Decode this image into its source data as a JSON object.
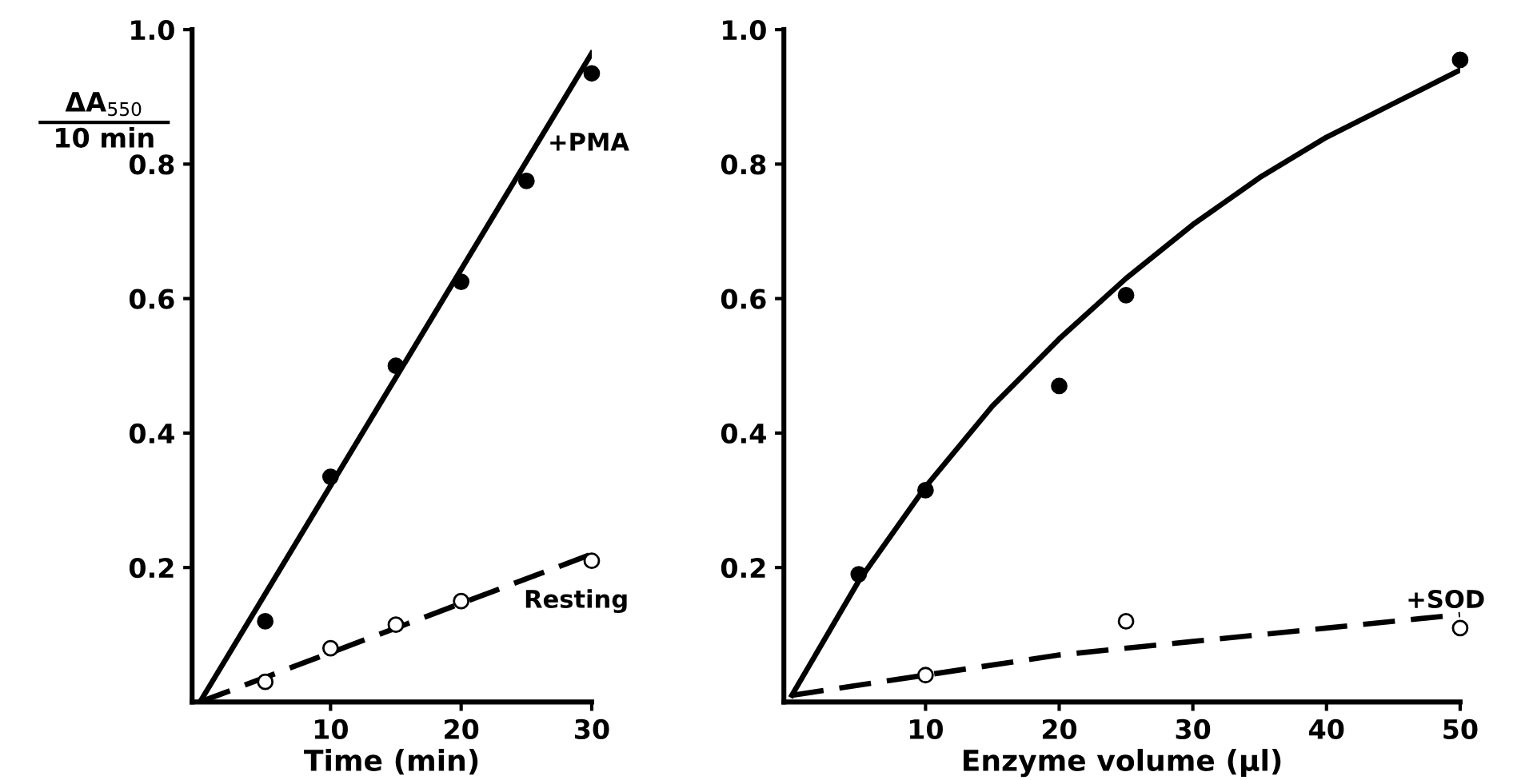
{
  "chart_data": [
    {
      "type": "scatter",
      "xlabel": "Time (min)",
      "ylabel": "ΔA$_{550}$\n10 min",
      "xlim": [
        -0.6,
        30
      ],
      "ylim": [
        0,
        1.0
      ],
      "xticks": [
        10,
        20,
        30
      ],
      "yticks": [
        0.2,
        0.4,
        0.6,
        0.8,
        {
          "value": 1.0,
          "label": "1.0"
        }
      ],
      "grid": false,
      "series": [
        {
          "color": "#000000",
          "marker": "circle",
          "x": [
            5,
            10,
            15,
            20,
            25,
            30
          ],
          "values": [
            0.12,
            0.335,
            0.5,
            0.625,
            0.775,
            0.935
          ]
        },
        {
          "type": "line",
          "color": "#000000",
          "line_style": "solid",
          "x": [
            0,
            30
          ],
          "values": [
            0.0,
            0.965
          ]
        },
        {
          "color": "#ffffff",
          "marker": "circle",
          "x": [
            5,
            10,
            15,
            20,
            30
          ],
          "values": [
            0.03,
            0.08,
            0.115,
            0.15,
            0.21
          ]
        },
        {
          "type": "line",
          "color": "#000000",
          "line_style": "dashed",
          "x": [
            0,
            30
          ],
          "values": [
            0.0,
            0.22
          ]
        }
      ],
      "annotations": [
        "+PMA",
        "Resting"
      ]
    },
    {
      "type": "scatter",
      "xlabel": "Enzyme volume (µl)",
      "xlim": [
        -0.6,
        50
      ],
      "ylim": [
        0,
        1.0
      ],
      "xticks": [
        10,
        20,
        30,
        40,
        50
      ],
      "yticks": [
        0.2,
        0.4,
        0.6,
        0.8,
        {
          "value": 1.0,
          "label": "1.0"
        }
      ],
      "grid": false,
      "series": [
        {
          "color": "#000000",
          "marker": "circle",
          "x": [
            5,
            10,
            20,
            25,
            50
          ],
          "values": [
            0.19,
            0.315,
            0.47,
            0.605,
            0.955
          ]
        },
        {
          "type": "line",
          "color": "#000000",
          "line_style": "solid",
          "x": [
            0,
            5,
            10,
            15,
            20,
            25,
            30,
            35,
            40,
            45,
            50
          ],
          "values": [
            0.01,
            0.18,
            0.32,
            0.44,
            0.54,
            0.63,
            0.71,
            0.78,
            0.84,
            0.89,
            0.94
          ]
        },
        {
          "color": "#ffffff",
          "marker": "circle",
          "x": [
            10,
            25,
            50
          ],
          "values": [
            0.04,
            0.12,
            0.11
          ]
        },
        {
          "type": "line",
          "color": "#000000",
          "line_style": "dashed",
          "x": [
            0,
            10,
            20,
            30,
            40,
            50
          ],
          "values": [
            0.01,
            0.04,
            0.07,
            0.09,
            0.11,
            0.13
          ]
        }
      ],
      "annotations": [
        "+SOD"
      ]
    }
  ]
}
